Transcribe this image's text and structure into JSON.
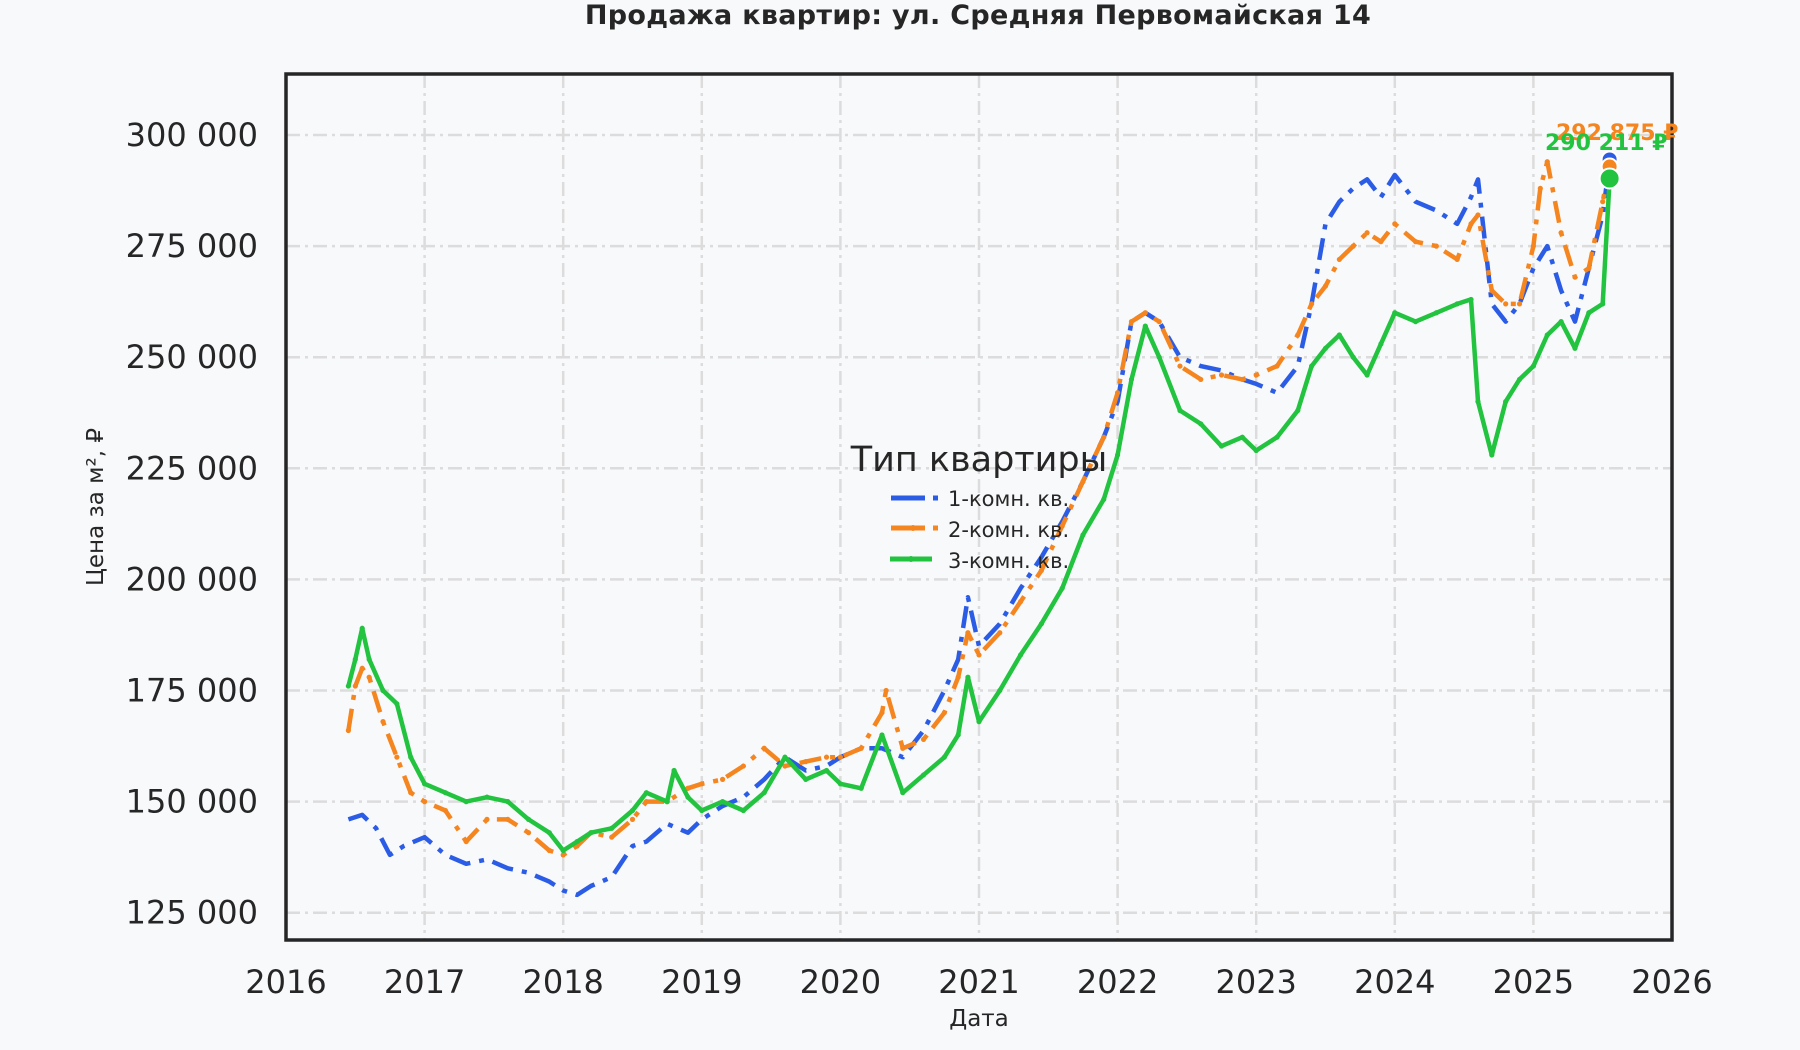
{
  "chart_data": {
    "type": "line",
    "title": "Продажа квартир: ул. Средняя Первомайская 14",
    "xlabel": "Дата",
    "ylabel": "Цена за м², ₽",
    "xlim": [
      2016,
      2026
    ],
    "ylim": [
      120000,
      312000
    ],
    "x_ticks": [
      "2016",
      "2017",
      "2018",
      "2019",
      "2020",
      "2021",
      "2022",
      "2023",
      "2024",
      "2025",
      "2026"
    ],
    "y_ticks": [
      "125 000",
      "150 000",
      "175 000",
      "200 000",
      "225 000",
      "250 000",
      "275 000",
      "300 000"
    ],
    "y_tick_values": [
      125000,
      150000,
      175000,
      200000,
      225000,
      250000,
      275000,
      300000
    ],
    "grid": true,
    "legend": {
      "title": "Тип квартиры",
      "position": "center",
      "entries": [
        "1-комн. кв.",
        "2-комн. кв.",
        "3-комн. кв."
      ]
    },
    "series": [
      {
        "name": "1-комн. кв.",
        "color": "#2b5ce6",
        "style": "dashdot",
        "x": [
          2016.45,
          2016.55,
          2016.65,
          2016.75,
          2016.85,
          2017.0,
          2017.15,
          2017.3,
          2017.45,
          2017.6,
          2017.75,
          2017.9,
          2018.0,
          2018.1,
          2018.2,
          2018.35,
          2018.5,
          2018.6,
          2018.75,
          2018.9,
          2019.0,
          2019.15,
          2019.3,
          2019.45,
          2019.6,
          2019.75,
          2019.9,
          2020.0,
          2020.15,
          2020.3,
          2020.45,
          2020.6,
          2020.75,
          2020.85,
          2020.92,
          2021.0,
          2021.15,
          2021.3,
          2021.45,
          2021.6,
          2021.75,
          2021.9,
          2022.0,
          2022.1,
          2022.2,
          2022.3,
          2022.45,
          2022.6,
          2022.75,
          2022.9,
          2023.0,
          2023.15,
          2023.3,
          2023.4,
          2023.5,
          2023.6,
          2023.7,
          2023.8,
          2023.9,
          2024.0,
          2024.15,
          2024.3,
          2024.45,
          2024.55,
          2024.6,
          2024.7,
          2024.8,
          2024.9,
          2025.0,
          2025.1,
          2025.2,
          2025.3,
          2025.4,
          2025.5,
          2025.55
        ],
        "values": [
          146000,
          147000,
          144000,
          138000,
          140000,
          142000,
          138000,
          136000,
          137000,
          135000,
          134000,
          132000,
          130000,
          129000,
          131000,
          133000,
          140000,
          141000,
          145000,
          143000,
          146000,
          149000,
          151000,
          155000,
          160000,
          157000,
          158000,
          160000,
          162000,
          162000,
          160000,
          166000,
          175000,
          182000,
          196000,
          185000,
          190000,
          198000,
          205000,
          213000,
          222000,
          232000,
          240000,
          258000,
          260000,
          258000,
          250000,
          248000,
          247000,
          245000,
          244000,
          242000,
          248000,
          262000,
          280000,
          285000,
          288000,
          290000,
          286000,
          291000,
          285000,
          283000,
          280000,
          286000,
          290000,
          262000,
          258000,
          262000,
          270000,
          275000,
          265000,
          258000,
          270000,
          282000,
          294000
        ]
      },
      {
        "name": "2-комн. кв.",
        "color": "#f5851f",
        "style": "dashdot-marker",
        "x": [
          2016.45,
          2016.5,
          2016.55,
          2016.6,
          2016.7,
          2016.8,
          2016.9,
          2017.0,
          2017.15,
          2017.3,
          2017.45,
          2017.6,
          2017.75,
          2017.9,
          2018.0,
          2018.1,
          2018.2,
          2018.35,
          2018.5,
          2018.6,
          2018.75,
          2018.9,
          2019.0,
          2019.15,
          2019.3,
          2019.45,
          2019.6,
          2019.75,
          2019.9,
          2020.0,
          2020.15,
          2020.3,
          2020.33,
          2020.45,
          2020.6,
          2020.75,
          2020.85,
          2020.92,
          2021.0,
          2021.15,
          2021.3,
          2021.45,
          2021.6,
          2021.75,
          2021.9,
          2022.0,
          2022.1,
          2022.2,
          2022.3,
          2022.45,
          2022.6,
          2022.75,
          2022.9,
          2023.0,
          2023.15,
          2023.3,
          2023.4,
          2023.5,
          2023.6,
          2023.7,
          2023.8,
          2023.9,
          2024.0,
          2024.15,
          2024.3,
          2024.45,
          2024.55,
          2024.6,
          2024.7,
          2024.8,
          2024.9,
          2025.0,
          2025.05,
          2025.1,
          2025.2,
          2025.3,
          2025.4,
          2025.5,
          2025.55
        ],
        "values": [
          166000,
          176000,
          180000,
          178000,
          168000,
          160000,
          152000,
          150000,
          148000,
          141000,
          146000,
          146000,
          143000,
          139000,
          138000,
          140000,
          143000,
          142000,
          146000,
          150000,
          150000,
          153000,
          154000,
          155000,
          158000,
          162000,
          158000,
          159000,
          160000,
          160000,
          162000,
          170000,
          175000,
          162000,
          164000,
          170000,
          178000,
          188000,
          183000,
          188000,
          195000,
          202000,
          212000,
          222000,
          232000,
          242000,
          258000,
          260000,
          258000,
          248000,
          245000,
          246000,
          245000,
          246000,
          248000,
          255000,
          262000,
          266000,
          272000,
          275000,
          278000,
          276000,
          280000,
          276000,
          275000,
          272000,
          280000,
          282000,
          265000,
          262000,
          262000,
          275000,
          288000,
          294000,
          278000,
          268000,
          270000,
          285000,
          293000
        ]
      },
      {
        "name": "3-комн. кв.",
        "color": "#22c33f",
        "style": "solid-marker",
        "x": [
          2016.45,
          2016.5,
          2016.55,
          2016.6,
          2016.7,
          2016.8,
          2016.9,
          2017.0,
          2017.15,
          2017.3,
          2017.45,
          2017.6,
          2017.75,
          2017.9,
          2018.0,
          2018.1,
          2018.2,
          2018.35,
          2018.5,
          2018.6,
          2018.75,
          2018.8,
          2018.9,
          2019.0,
          2019.15,
          2019.3,
          2019.45,
          2019.6,
          2019.75,
          2019.9,
          2020.0,
          2020.15,
          2020.3,
          2020.45,
          2020.6,
          2020.75,
          2020.85,
          2020.92,
          2021.0,
          2021.15,
          2021.3,
          2021.45,
          2021.6,
          2021.75,
          2021.9,
          2022.0,
          2022.1,
          2022.2,
          2022.3,
          2022.45,
          2022.6,
          2022.75,
          2022.9,
          2023.0,
          2023.15,
          2023.3,
          2023.4,
          2023.5,
          2023.6,
          2023.7,
          2023.8,
          2023.9,
          2024.0,
          2024.15,
          2024.3,
          2024.45,
          2024.55,
          2024.6,
          2024.7,
          2024.8,
          2024.9,
          2025.0,
          2025.1,
          2025.2,
          2025.3,
          2025.4,
          2025.5,
          2025.55
        ],
        "values": [
          176000,
          182000,
          189000,
          182000,
          175000,
          172000,
          160000,
          154000,
          152000,
          150000,
          151000,
          150000,
          146000,
          143000,
          139000,
          141000,
          143000,
          144000,
          148000,
          152000,
          150000,
          157000,
          151000,
          148000,
          150000,
          148000,
          152000,
          160000,
          155000,
          157000,
          154000,
          153000,
          165000,
          152000,
          156000,
          160000,
          165000,
          178000,
          168000,
          175000,
          183000,
          190000,
          198000,
          210000,
          218000,
          228000,
          245000,
          257000,
          250000,
          238000,
          235000,
          230000,
          232000,
          229000,
          232000,
          238000,
          248000,
          252000,
          255000,
          250000,
          246000,
          253000,
          260000,
          258000,
          260000,
          262000,
          263000,
          240000,
          228000,
          240000,
          245000,
          248000,
          255000,
          258000,
          252000,
          260000,
          262000,
          290000
        ]
      }
    ],
    "end_labels": [
      {
        "series": "1-комн. кв.",
        "text": "",
        "occluded": true
      },
      {
        "series": "2-комн. кв.",
        "text": "292 875 ₽"
      },
      {
        "series": "3-комн. кв.",
        "text": "290 211 ₽"
      }
    ]
  }
}
